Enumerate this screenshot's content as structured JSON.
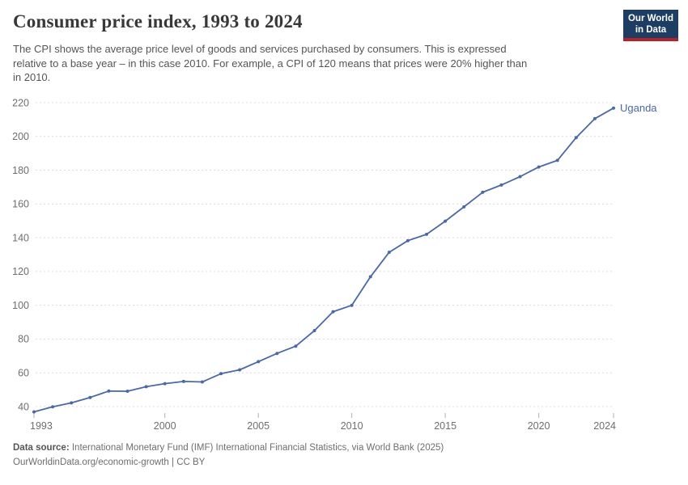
{
  "header": {
    "title": "Consumer price index, 1993 to 2024",
    "subtitle_lines": [
      "The CPI shows the average price level of goods and services purchased by consumers. This is expressed",
      "relative to a base year – in this case 2010. For example, a CPI of 120 means that prices were 20% higher than",
      "in 2010."
    ],
    "logo": {
      "line1": "Our World",
      "line2": "in Data",
      "bg_color": "#1d3d63",
      "bar_color": "#b5232a"
    }
  },
  "chart_data": {
    "type": "line",
    "title": "Consumer price index, 1993 to 2024",
    "xlabel": "",
    "ylabel": "",
    "x": [
      1993,
      1994,
      1995,
      1996,
      1997,
      1998,
      1999,
      2000,
      2001,
      2002,
      2003,
      2004,
      2005,
      2006,
      2007,
      2008,
      2009,
      2010,
      2011,
      2012,
      2013,
      2014,
      2015,
      2016,
      2017,
      2018,
      2019,
      2020,
      2021,
      2022,
      2023,
      2024
    ],
    "series": [
      {
        "name": "Uganda",
        "color": "#4a69a5",
        "values": [
          36.9,
          39.9,
          42.2,
          45.4,
          49.2,
          49.1,
          51.8,
          53.6,
          54.9,
          54.6,
          59.5,
          61.8,
          66.6,
          71.5,
          75.8,
          85.0,
          96.2,
          100.0,
          116.9,
          131.4,
          138.3,
          142.0,
          149.8,
          158.3,
          166.9,
          171.2,
          176.2,
          181.9,
          185.8,
          199.3,
          210.5,
          216.8
        ]
      }
    ],
    "x_ticks": [
      1993,
      2000,
      2005,
      2010,
      2015,
      2020,
      2024
    ],
    "y_ticks": [
      40,
      60,
      80,
      100,
      120,
      140,
      160,
      180,
      200,
      220
    ],
    "ylim": [
      40,
      220
    ],
    "xlim": [
      1993,
      2024
    ],
    "grid": "horizontal-dashed",
    "legend_position": "end-of-line-label",
    "colors": {
      "grid": "#dcdcdc",
      "tick_text": "#6e6e6e",
      "tick_mark": "#b0b0b0"
    }
  },
  "footer": {
    "source_label": "Data source:",
    "source_text": " International Monetary Fund (IMF) International Financial Statistics, via World Bank (2025)",
    "link_line": "OurWorldinData.org/economic-growth | CC BY"
  }
}
